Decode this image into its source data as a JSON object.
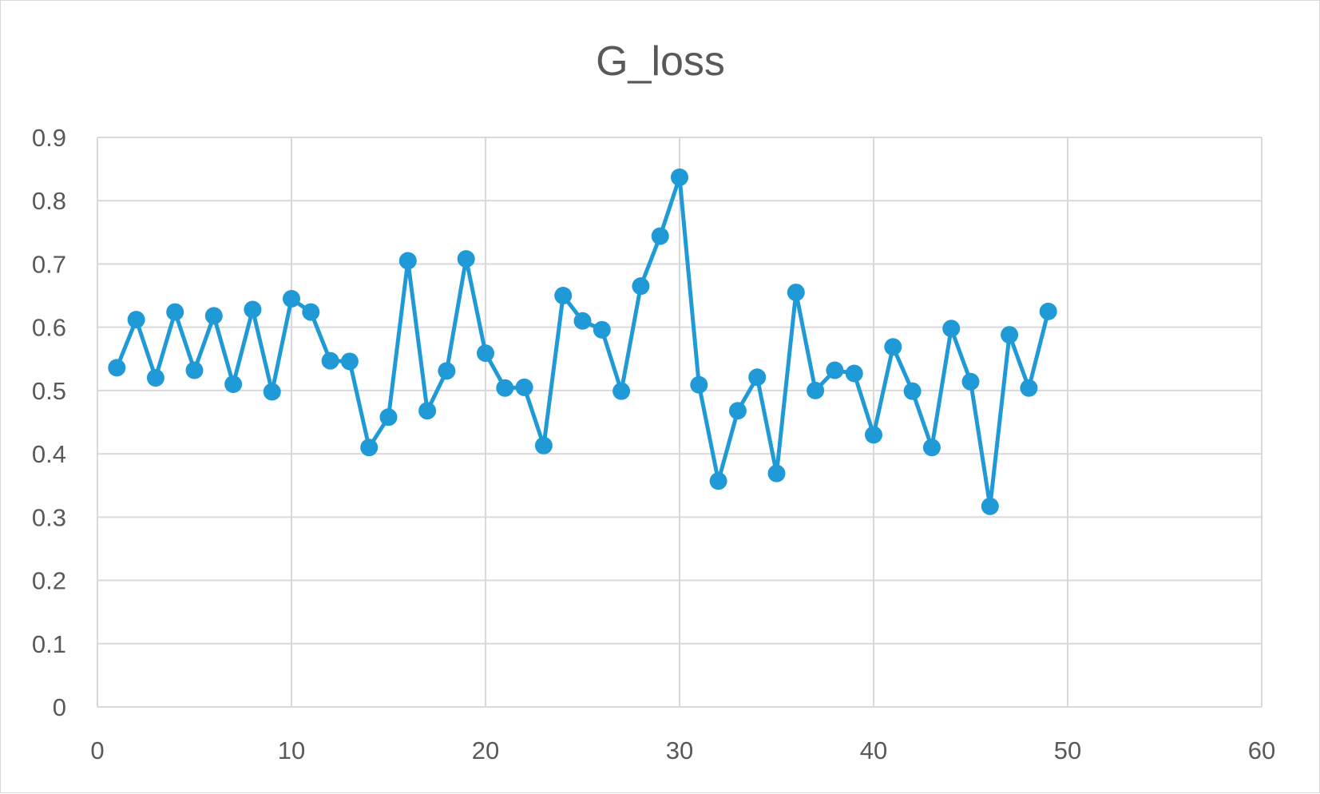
{
  "chart_data": {
    "type": "line",
    "title": "G_loss",
    "xlabel": "",
    "ylabel": "",
    "xlim": [
      0,
      60
    ],
    "ylim": [
      0,
      0.9
    ],
    "x_ticks": [
      0,
      10,
      20,
      30,
      40,
      50,
      60
    ],
    "y_ticks": [
      0,
      0.1,
      0.2,
      0.3,
      0.4,
      0.5,
      0.6,
      0.7,
      0.8,
      0.9
    ],
    "grid": true,
    "legend": "none",
    "series": [
      {
        "color": "#1f9ad6",
        "marker": "circle",
        "x": [
          1,
          2,
          3,
          4,
          5,
          6,
          7,
          8,
          9,
          10,
          11,
          12,
          13,
          14,
          15,
          16,
          17,
          18,
          19,
          20,
          21,
          22,
          23,
          24,
          25,
          26,
          27,
          28,
          29,
          30,
          31,
          32,
          33,
          34,
          35,
          36,
          37,
          38,
          39,
          40,
          41,
          42,
          43,
          44,
          45,
          46,
          47,
          48,
          49
        ],
        "y": [
          0.536,
          0.612,
          0.52,
          0.624,
          0.532,
          0.618,
          0.51,
          0.628,
          0.498,
          0.645,
          0.624,
          0.547,
          0.546,
          0.41,
          0.458,
          0.705,
          0.468,
          0.531,
          0.708,
          0.559,
          0.504,
          0.505,
          0.413,
          0.65,
          0.61,
          0.596,
          0.499,
          0.665,
          0.744,
          0.837,
          0.509,
          0.357,
          0.468,
          0.521,
          0.369,
          0.655,
          0.5,
          0.532,
          0.527,
          0.43,
          0.569,
          0.499,
          0.41,
          0.598,
          0.514,
          0.317,
          0.588,
          0.504,
          0.625
        ]
      }
    ]
  }
}
